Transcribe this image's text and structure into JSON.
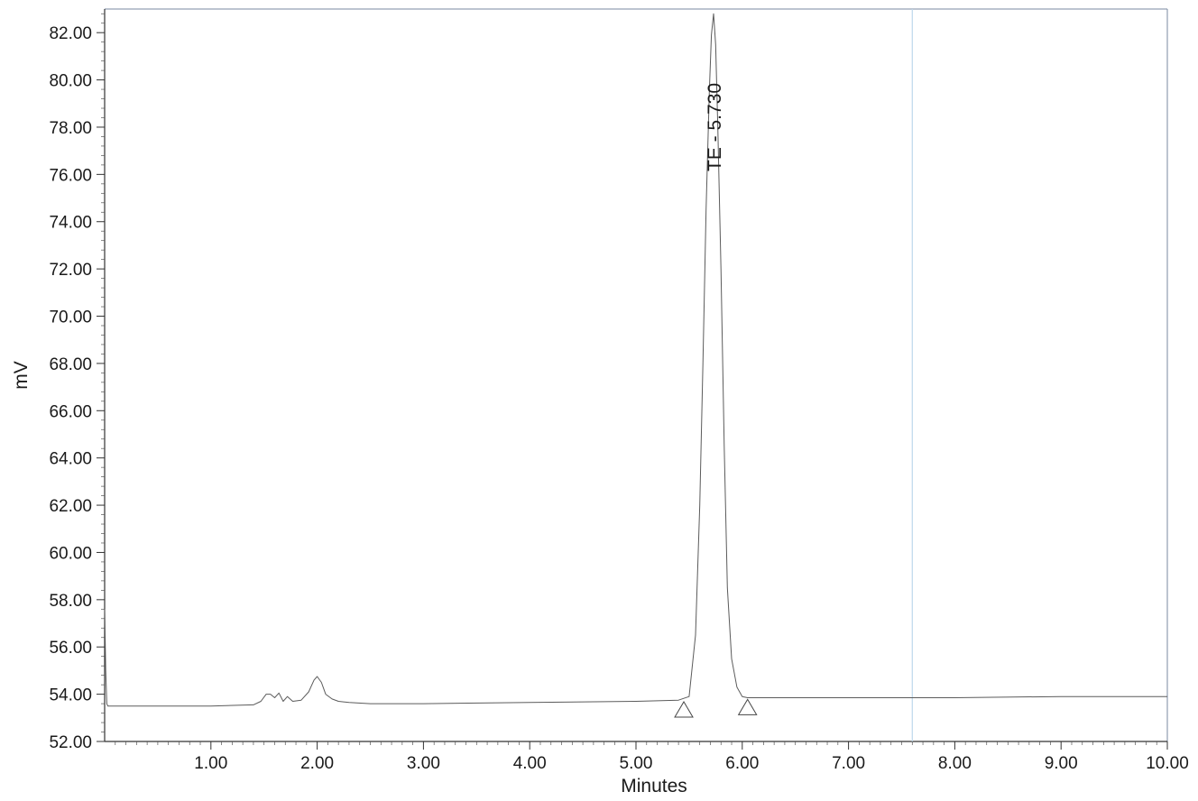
{
  "chart_data": {
    "type": "line",
    "xlabel": "Minutes",
    "ylabel": "mV",
    "xlim": [
      0.0,
      10.0
    ],
    "ylim": [
      52.0,
      83.0
    ],
    "x_ticks": [
      "1.00",
      "2.00",
      "3.00",
      "4.00",
      "5.00",
      "6.00",
      "7.00",
      "8.00",
      "9.00",
      "10.00"
    ],
    "y_ticks": [
      "52.00",
      "54.00",
      "56.00",
      "58.00",
      "60.00",
      "62.00",
      "64.00",
      "66.00",
      "68.00",
      "70.00",
      "72.00",
      "74.00",
      "76.00",
      "78.00",
      "80.00",
      "82.00"
    ],
    "grid": false,
    "series": [
      {
        "x": [
          0.0,
          0.01,
          0.02,
          0.03,
          0.05,
          0.1,
          0.5,
          1.0,
          1.4,
          1.47,
          1.52,
          1.56,
          1.6,
          1.64,
          1.68,
          1.72,
          1.77,
          1.85,
          1.92,
          1.97,
          2.0,
          2.04,
          2.08,
          2.14,
          2.2,
          2.3,
          2.5,
          3.0,
          4.0,
          5.0,
          5.4,
          5.5,
          5.56,
          5.6,
          5.63,
          5.66,
          5.69,
          5.71,
          5.73,
          5.75,
          5.77,
          5.8,
          5.83,
          5.86,
          5.9,
          5.95,
          6.0,
          6.05,
          6.1,
          6.5,
          7.0,
          8.0,
          9.0,
          10.0
        ],
        "y": [
          57.6,
          55.0,
          53.6,
          53.5,
          53.5,
          53.5,
          53.5,
          53.5,
          53.55,
          53.7,
          54.0,
          54.0,
          53.85,
          54.05,
          53.7,
          53.9,
          53.7,
          53.75,
          54.1,
          54.6,
          54.75,
          54.5,
          54.0,
          53.8,
          53.7,
          53.65,
          53.6,
          53.6,
          53.65,
          53.7,
          53.75,
          53.9,
          56.5,
          62.0,
          68.0,
          74.5,
          79.5,
          81.9,
          82.8,
          81.5,
          78.0,
          72.0,
          64.5,
          58.5,
          55.5,
          54.3,
          53.9,
          53.85,
          53.85,
          53.85,
          53.85,
          53.85,
          53.9,
          53.9
        ]
      }
    ],
    "annotations": [
      {
        "text": "TE - 5.730",
        "x": 5.73
      }
    ],
    "integration_markers": [
      {
        "x": 5.45,
        "y": 53.3
      },
      {
        "x": 6.05,
        "y": 53.4
      }
    ],
    "vertical_marker_x": 7.6
  }
}
